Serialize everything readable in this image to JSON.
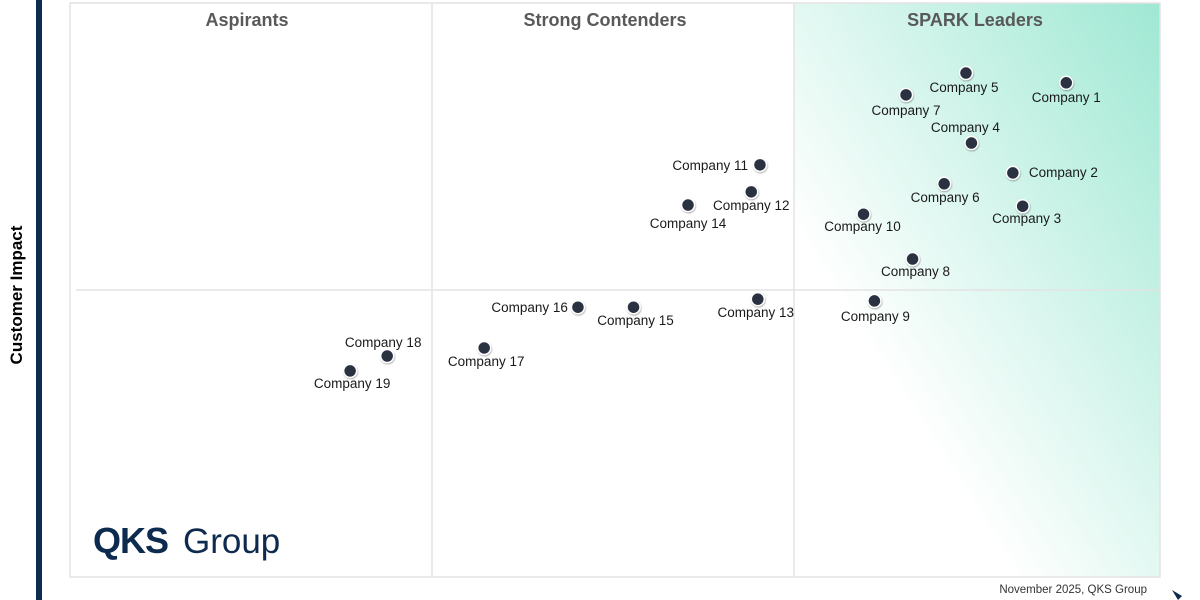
{
  "chart_data": {
    "type": "scatter",
    "title": "",
    "xlabel": "",
    "ylabel": "Customer Impact",
    "xlim": [
      0,
      100
    ],
    "ylim": [
      0,
      100
    ],
    "grid": false,
    "quadrants": [
      "Aspirants",
      "Strong Contenders",
      "SPARK Leaders"
    ],
    "point_color": "#2b3142",
    "leader_gradient_color": "#9fe8d3",
    "points": [
      {
        "name": "Company 1",
        "x": 91.4,
        "y": 86.1
      },
      {
        "name": "Company 2",
        "x": 86.5,
        "y": 70.4
      },
      {
        "name": "Company 3",
        "x": 87.4,
        "y": 64.6
      },
      {
        "name": "Company 4",
        "x": 82.7,
        "y": 75.6
      },
      {
        "name": "Company 5",
        "x": 82.2,
        "y": 87.8
      },
      {
        "name": "Company 6",
        "x": 80.2,
        "y": 68.5
      },
      {
        "name": "Company 7",
        "x": 76.7,
        "y": 84.0
      },
      {
        "name": "Company 8",
        "x": 77.3,
        "y": 55.4
      },
      {
        "name": "Company 9",
        "x": 73.8,
        "y": 48.1
      },
      {
        "name": "Company 10",
        "x": 72.8,
        "y": 63.2
      },
      {
        "name": "Company 11",
        "x": 63.3,
        "y": 71.8
      },
      {
        "name": "Company 12",
        "x": 62.5,
        "y": 67.1
      },
      {
        "name": "Company 13",
        "x": 63.1,
        "y": 48.4
      },
      {
        "name": "Company 14",
        "x": 56.7,
        "y": 64.8
      },
      {
        "name": "Company 15",
        "x": 51.7,
        "y": 47.0
      },
      {
        "name": "Company 16",
        "x": 46.6,
        "y": 47.0
      },
      {
        "name": "Company 17",
        "x": 38.0,
        "y": 39.9
      },
      {
        "name": "Company 18",
        "x": 29.1,
        "y": 38.5
      },
      {
        "name": "Company 19",
        "x": 25.7,
        "y": 35.9
      }
    ]
  },
  "logo": {
    "bold": "QKS",
    "light": "Group"
  },
  "footer": "November  2025,  QKS Group"
}
